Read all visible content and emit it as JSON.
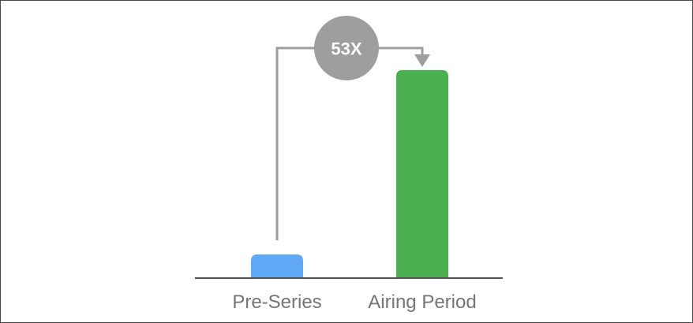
{
  "chart_data": {
    "type": "bar",
    "categories": [
      "Pre-Series",
      "Airing Period"
    ],
    "values": [
      1,
      53
    ],
    "ylim": [
      0,
      53
    ],
    "title": "",
    "xlabel": "",
    "ylabel": "",
    "grid": false,
    "colors": [
      "#5fa8f5",
      "#4caf50"
    ],
    "annotation": {
      "type": "multiplier-arrow",
      "from": "Pre-Series",
      "to": "Airing Period",
      "label": "53X",
      "color": "#9e9e9e"
    }
  }
}
